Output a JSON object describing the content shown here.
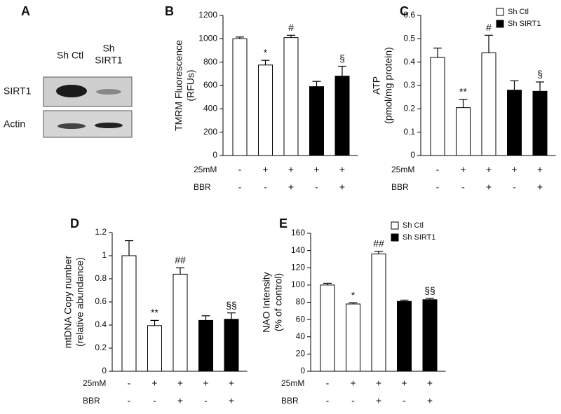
{
  "blot": {
    "label": "A",
    "lanes": [
      {
        "lines": [
          "Sh Ctl"
        ]
      },
      {
        "lines": [
          "Sh",
          "SIRT1"
        ]
      }
    ],
    "rows": [
      "SIRT1",
      "Actin"
    ]
  },
  "chart_data": [
    {
      "type": "bar",
      "label": "B",
      "ylabel": [
        "TMRM Fluorescence",
        "(RFUs)"
      ],
      "values": [
        1000,
        775,
        1010,
        590,
        680
      ],
      "errors": [
        15,
        40,
        20,
        45,
        85
      ],
      "colors": [
        "#ffffff",
        "#ffffff",
        "#ffffff",
        "#000000",
        "#000000"
      ],
      "annotations": [
        null,
        "*",
        "#",
        null,
        "§"
      ],
      "conditions": [
        {
          "name": "25mM",
          "values": [
            "-",
            "+",
            "+",
            "+",
            "+"
          ]
        },
        {
          "name": "BBR",
          "values": [
            "-",
            "-",
            "+",
            "-",
            "+"
          ]
        }
      ],
      "ylim": [
        0,
        1200
      ],
      "yticks": [
        0,
        200,
        400,
        600,
        800,
        1000,
        1200
      ]
    },
    {
      "type": "bar",
      "label": "C",
      "ylabel": [
        "ATP",
        "(pmol/mg protein)"
      ],
      "values": [
        0.42,
        0.205,
        0.44,
        0.28,
        0.275
      ],
      "errors": [
        0.04,
        0.035,
        0.075,
        0.04,
        0.04
      ],
      "colors": [
        "#ffffff",
        "#ffffff",
        "#ffffff",
        "#000000",
        "#000000"
      ],
      "annotations": [
        null,
        "**",
        "#",
        null,
        "§"
      ],
      "conditions": [
        {
          "name": "25mM",
          "values": [
            "-",
            "+",
            "+",
            "+",
            "+"
          ]
        },
        {
          "name": "BBR",
          "values": [
            "-",
            "-",
            "+",
            "-",
            "+"
          ]
        }
      ],
      "legend": [
        {
          "name": "Sh Ctl",
          "color": "#ffffff"
        },
        {
          "name": "Sh SIRT1",
          "color": "#000000"
        }
      ],
      "ylim": [
        0,
        0.6
      ],
      "yticks": [
        0,
        0.1,
        0.2,
        0.3,
        0.4,
        0.5,
        0.6
      ]
    },
    {
      "type": "bar",
      "label": "D",
      "ylabel": [
        "mtDNA Copy number",
        "(relative abundance)"
      ],
      "values": [
        1.0,
        0.395,
        0.84,
        0.44,
        0.45
      ],
      "errors": [
        0.13,
        0.045,
        0.055,
        0.04,
        0.055
      ],
      "colors": [
        "#ffffff",
        "#ffffff",
        "#ffffff",
        "#000000",
        "#000000"
      ],
      "annotations": [
        null,
        "**",
        "##",
        null,
        "§§"
      ],
      "conditions": [
        {
          "name": "25mM",
          "values": [
            "-",
            "+",
            "+",
            "+",
            "+"
          ]
        },
        {
          "name": "BBR",
          "values": [
            "-",
            "-",
            "+",
            "-",
            "+"
          ]
        }
      ],
      "ylim": [
        0,
        1.2
      ],
      "yticks": [
        0,
        0.2,
        0.4,
        0.6,
        0.8,
        1,
        1.2
      ]
    },
    {
      "type": "bar",
      "label": "E",
      "ylabel": [
        "NAO  Intensity",
        "(% of control)"
      ],
      "values": [
        100,
        78,
        136,
        81,
        83
      ],
      "errors": [
        2,
        1.5,
        3,
        1.5,
        1.5
      ],
      "colors": [
        "#ffffff",
        "#ffffff",
        "#ffffff",
        "#000000",
        "#000000"
      ],
      "annotations": [
        null,
        "*",
        "##",
        null,
        "§§"
      ],
      "conditions": [
        {
          "name": "25mM",
          "values": [
            "-",
            "+",
            "+",
            "+",
            "+"
          ]
        },
        {
          "name": "BBR",
          "values": [
            "-",
            "-",
            "+",
            "-",
            "+"
          ]
        }
      ],
      "legend": [
        {
          "name": "Sh Ctl",
          "color": "#ffffff"
        },
        {
          "name": "Sh SIRT1",
          "color": "#000000"
        }
      ],
      "ylim": [
        0,
        160
      ],
      "yticks": [
        0,
        20,
        40,
        60,
        80,
        100,
        120,
        140,
        160
      ]
    }
  ]
}
